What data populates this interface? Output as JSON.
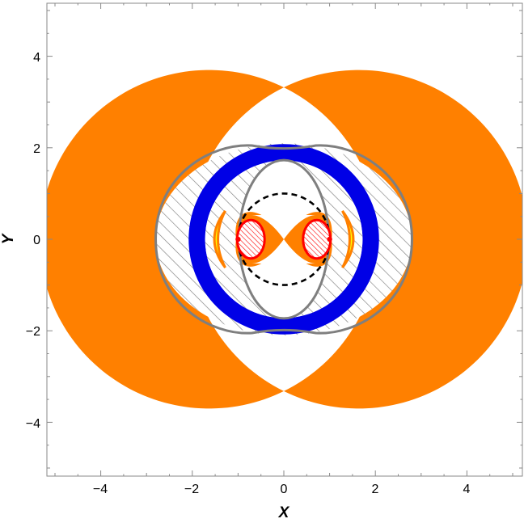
{
  "chart_data": {
    "type": "region-plot",
    "xlabel": "X",
    "ylabel": "Y",
    "xlim": [
      -5.2,
      5.2
    ],
    "ylim": [
      -5.2,
      5.2
    ],
    "x_ticks": [
      -4,
      -2,
      0,
      2,
      4
    ],
    "y_ticks": [
      -4,
      -2,
      0,
      2,
      4
    ],
    "x_tick_labels": [
      "−4",
      "−2",
      "0",
      "2",
      "4"
    ],
    "y_tick_labels": [
      "−4",
      "−2",
      "0",
      "2",
      "4"
    ],
    "colors": {
      "orange": "#ff8000",
      "blue": "#0000e6",
      "yellow": "#ffff00",
      "red": "#ff0000",
      "gray": "#7f7f7f",
      "black": "#000000"
    },
    "regions": {
      "orange_lunes": {
        "centers_x": [
          -0.9,
          0.9
        ],
        "outer_radius": 3.7,
        "cusp_y": 3.32
      },
      "hatched_band": {
        "outer_rx": 2.8,
        "outer_ry": 2.1,
        "inner_rx": 2.05,
        "inner_ry": 2.0
      },
      "blue_ring": {
        "outer_r": 2.08,
        "inner_r": 1.72
      },
      "inner_gray_ellipse": {
        "rx": 0.98,
        "ry": 1.73
      },
      "dashed_circle": {
        "r": 1.0
      },
      "orange_butterfly_x_extent": 1.15,
      "yellow_lens_x": [
        1.28,
        1.65
      ],
      "red_hatched_ellipses": {
        "centers_x": [
          -0.72,
          0.72
        ],
        "rx": 0.3,
        "ry": 0.42
      },
      "red_dots_x": [
        -1.0,
        1.0
      ]
    }
  }
}
